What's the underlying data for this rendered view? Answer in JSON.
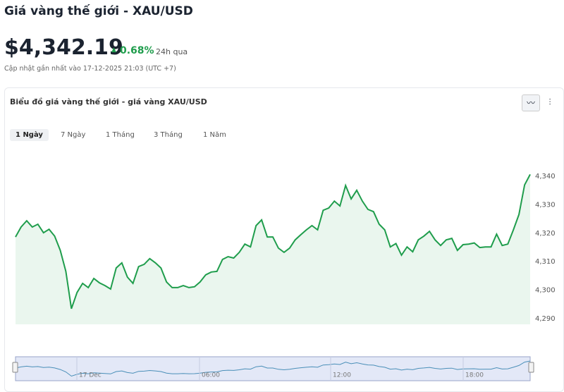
{
  "header": {
    "title": "Giá vàng thế giới - XAU/USD",
    "price": "$4,342.19",
    "change": "0.68%",
    "period": "24h qua",
    "updated": "Cập nhật gần nhất vào 17-12-2025 21:03 (UTC +7)"
  },
  "card": {
    "title": "Biểu đồ giá vàng thế giới - giá vàng XAU/USD",
    "tabs": [
      "1 Ngày",
      "7 Ngày",
      "1 Tháng",
      "3 Tháng",
      "1 Năm"
    ]
  },
  "navigator": {
    "labels": [
      "17 Dec",
      "06:00",
      "12:00",
      "18:00"
    ]
  },
  "chart_data": {
    "type": "area",
    "color": "#1f9d4c",
    "values": [
      4318.7,
      4322.2,
      4324.4,
      4322.2,
      4323.2,
      4320.2,
      4321.4,
      4319.0,
      4314.0,
      4306.6,
      4293.5,
      4299.2,
      4302.4,
      4300.9,
      4304.1,
      4302.6,
      4301.6,
      4300.4,
      4307.8,
      4309.6,
      4304.6,
      4302.4,
      4308.3,
      4309.1,
      4311.1,
      4309.6,
      4307.8,
      4302.9,
      4300.9,
      4300.9,
      4301.6,
      4300.9,
      4301.2,
      4302.9,
      4305.4,
      4306.4,
      4306.6,
      4310.8,
      4311.8,
      4311.3,
      4313.3,
      4316.2,
      4315.2,
      4322.7,
      4324.7,
      4318.7,
      4318.7,
      4314.8,
      4313.3,
      4314.8,
      4317.7,
      4319.5,
      4321.2,
      4322.7,
      4321.2,
      4328.1,
      4328.9,
      4331.3,
      4329.6,
      4336.8,
      4332.1,
      4335.1,
      4331.3,
      4328.4,
      4327.6,
      4323.2,
      4321.2,
      4315.2,
      4316.4,
      4312.3,
      4315.2,
      4313.5,
      4317.7,
      4319.0,
      4320.7,
      4317.7,
      4315.7,
      4317.7,
      4318.2,
      4314.0,
      4316.0,
      4316.2,
      4316.6,
      4315.0,
      4315.2,
      4315.2,
      4319.7,
      4315.7,
      4316.2,
      4321.2,
      4326.6,
      4337.0,
      4340.7
    ],
    "ylim": [
      4288,
      4345
    ],
    "yticks": [
      {
        "value": 4290,
        "label": "4,290"
      },
      {
        "value": 4300,
        "label": "4,300"
      },
      {
        "value": 4310,
        "label": "4,310"
      },
      {
        "value": 4320,
        "label": "4,320"
      },
      {
        "value": 4330,
        "label": "4,330"
      },
      {
        "value": 4340,
        "label": "4,340"
      }
    ]
  }
}
